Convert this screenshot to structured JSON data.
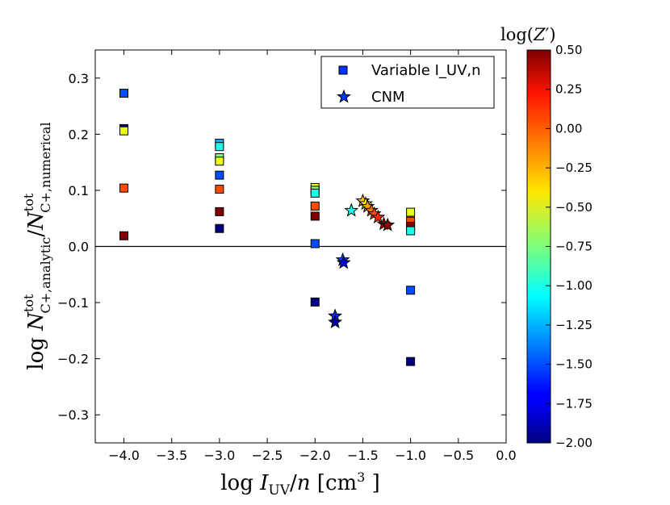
{
  "chart_data": {
    "type": "scatter",
    "xlabel": "log I_UV/n [cm^3 ]",
    "ylabel": "log N^tot_C+,analytic / N^tot_C+,numerical",
    "xlim": [
      -4.3,
      0.0
    ],
    "ylim": [
      -0.35,
      0.35
    ],
    "x_ticks": [
      -4.0,
      -3.5,
      -3.0,
      -2.5,
      -2.0,
      -1.5,
      -1.0,
      -0.5,
      0.0
    ],
    "y_ticks": [
      -0.3,
      -0.2,
      -0.1,
      0.0,
      0.1,
      0.2,
      0.3
    ],
    "x_tick_labels": [
      "−4.0",
      "−3.5",
      "−3.0",
      "−2.5",
      "−2.0",
      "−1.5",
      "−1.0",
      "−0.5",
      "0.0"
    ],
    "y_tick_labels": [
      "−0.3",
      "−0.2",
      "−0.1",
      "0.0",
      "0.1",
      "0.2",
      "0.3"
    ],
    "hline_y": 0.0,
    "legend": {
      "position": "top-right",
      "entries": [
        {
          "label": "Variable I_UV,n",
          "marker": "square",
          "color": "#0033ff"
        },
        {
          "label": "CNM",
          "marker": "star",
          "color": "#0033ff"
        }
      ]
    },
    "colorbar": {
      "title": "log(Z′)",
      "min": -2.0,
      "max": 0.5,
      "ticks": [
        0.5,
        0.25,
        0.0,
        -0.25,
        -0.5,
        -0.75,
        -1.0,
        -1.25,
        -1.5,
        -1.75,
        -2.0
      ],
      "tick_labels": [
        "0.50",
        "0.25",
        "0.00",
        "−0.25",
        "−0.50",
        "−0.75",
        "−1.00",
        "−1.25",
        "−1.50",
        "−1.75",
        "−2.00"
      ]
    },
    "series": [
      {
        "name": "Variable I_UV,n",
        "marker": "square",
        "points": [
          {
            "x": -4.0,
            "y": 0.273,
            "z": -1.5
          },
          {
            "x": -4.0,
            "y": 0.21,
            "z": -2.0
          },
          {
            "x": -4.0,
            "y": 0.206,
            "z": -0.5
          },
          {
            "x": -4.0,
            "y": 0.104,
            "z": 0.0
          },
          {
            "x": -4.0,
            "y": 0.019,
            "z": 0.5
          },
          {
            "x": -3.0,
            "y": 0.184,
            "z": -1.25
          },
          {
            "x": -3.0,
            "y": 0.178,
            "z": -1.0
          },
          {
            "x": -3.0,
            "y": 0.158,
            "z": -0.75
          },
          {
            "x": -3.0,
            "y": 0.152,
            "z": -0.5
          },
          {
            "x": -3.0,
            "y": 0.127,
            "z": -1.5
          },
          {
            "x": -3.0,
            "y": 0.102,
            "z": 0.0
          },
          {
            "x": -3.0,
            "y": 0.062,
            "z": 0.5
          },
          {
            "x": -3.0,
            "y": 0.032,
            "z": -2.0
          },
          {
            "x": -2.0,
            "y": 0.105,
            "z": -0.5
          },
          {
            "x": -2.0,
            "y": 0.1,
            "z": -0.75
          },
          {
            "x": -2.0,
            "y": 0.095,
            "z": -1.0
          },
          {
            "x": -2.0,
            "y": 0.072,
            "z": 0.0
          },
          {
            "x": -2.0,
            "y": 0.054,
            "z": 0.5
          },
          {
            "x": -2.0,
            "y": 0.005,
            "z": -1.5
          },
          {
            "x": -2.0,
            "y": -0.099,
            "z": -2.0
          },
          {
            "x": -1.0,
            "y": 0.061,
            "z": -0.5
          },
          {
            "x": -1.0,
            "y": 0.045,
            "z": 0.0
          },
          {
            "x": -1.0,
            "y": 0.036,
            "z": 0.5
          },
          {
            "x": -1.0,
            "y": 0.028,
            "z": -1.0
          },
          {
            "x": -1.0,
            "y": -0.078,
            "z": -1.5
          },
          {
            "x": -1.0,
            "y": -0.205,
            "z": -2.0
          }
        ]
      },
      {
        "name": "CNM",
        "marker": "star",
        "points": [
          {
            "x": -1.62,
            "y": 0.064,
            "z": -1.0
          },
          {
            "x": -1.5,
            "y": 0.081,
            "z": -0.3
          },
          {
            "x": -1.47,
            "y": 0.076,
            "z": -0.4
          },
          {
            "x": -1.45,
            "y": 0.071,
            "z": -0.2
          },
          {
            "x": -1.41,
            "y": 0.064,
            "z": -0.1
          },
          {
            "x": -1.38,
            "y": 0.058,
            "z": 0.0
          },
          {
            "x": -1.34,
            "y": 0.052,
            "z": 0.1
          },
          {
            "x": -1.28,
            "y": 0.04,
            "z": 0.4
          },
          {
            "x": -1.24,
            "y": 0.038,
            "z": 0.45
          },
          {
            "x": -1.71,
            "y": -0.024,
            "z": -1.5
          },
          {
            "x": -1.7,
            "y": -0.029,
            "z": -1.75
          },
          {
            "x": -1.79,
            "y": -0.124,
            "z": -1.6
          },
          {
            "x": -1.79,
            "y": -0.135,
            "z": -1.9
          }
        ]
      }
    ]
  }
}
